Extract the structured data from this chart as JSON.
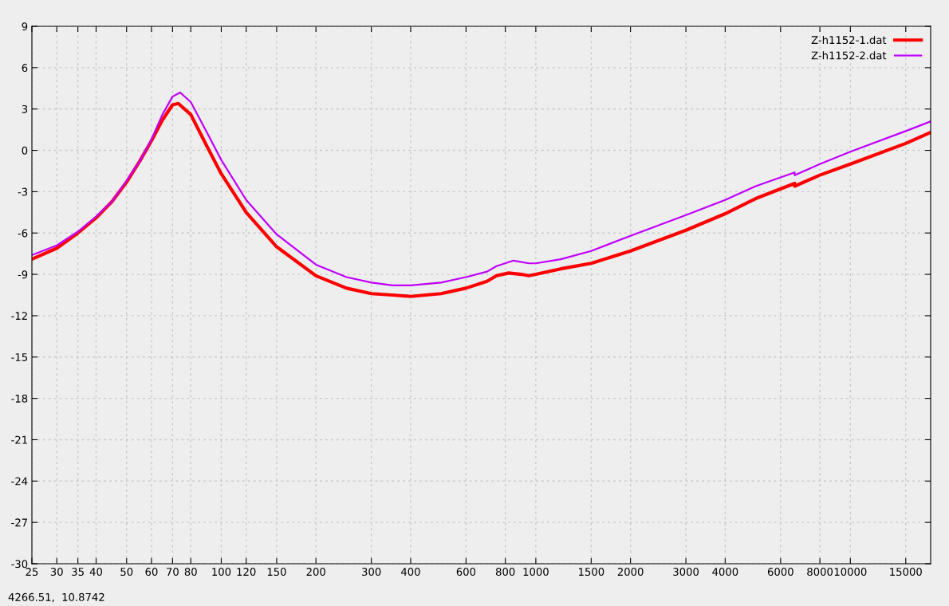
{
  "chart_data": {
    "type": "line",
    "log": "x",
    "grid": true,
    "legend": "top right",
    "line_style": "solid",
    "marker": "none",
    "xlim": [
      25,
      18000
    ],
    "xticks": [
      25,
      30,
      35,
      40,
      50,
      60,
      70,
      80,
      100,
      120,
      150,
      200,
      300,
      400,
      600,
      800,
      1000,
      1500,
      2000,
      3000,
      4000,
      6000,
      8000,
      10000,
      15000
    ],
    "ylim": [
      -30,
      9
    ],
    "yticks": [
      -30,
      -27,
      -24,
      -21,
      -18,
      -15,
      -12,
      -9,
      -6,
      -3,
      0,
      3,
      6,
      9
    ],
    "annotations": [
      "4266.51,  10.8742"
    ],
    "series": [
      {
        "name": "Z-h1152-1.dat",
        "color": "#ff0000",
        "x": [
          25,
          30,
          35,
          40,
          45,
          50,
          55,
          60,
          65,
          70,
          73,
          80,
          90,
          100,
          120,
          150,
          200,
          250,
          300,
          350,
          400,
          500,
          600,
          700,
          750,
          820,
          900,
          950,
          1000,
          1200,
          1500,
          2000,
          3000,
          4000,
          5000,
          6650,
          6650,
          8000,
          10000,
          15000,
          18000
        ],
        "values": [
          -7.9,
          -7.1,
          -6.0,
          -4.9,
          -3.7,
          -2.3,
          -0.8,
          0.7,
          2.2,
          3.3,
          3.4,
          2.6,
          0.3,
          -1.7,
          -4.5,
          -7.0,
          -9.1,
          -10.0,
          -10.4,
          -10.5,
          -10.6,
          -10.4,
          -10.0,
          -9.5,
          -9.1,
          -8.9,
          -9.0,
          -9.1,
          -9.0,
          -8.6,
          -8.2,
          -7.3,
          -5.8,
          -4.6,
          -3.5,
          -2.4,
          -2.6,
          -1.8,
          -1.0,
          0.5,
          1.3
        ]
      },
      {
        "name": "Z-h1152-2.dat",
        "color": "#c000ff",
        "x": [
          25,
          30,
          35,
          40,
          45,
          50,
          55,
          60,
          65,
          70,
          74,
          80,
          90,
          100,
          120,
          150,
          200,
          250,
          300,
          350,
          400,
          500,
          600,
          700,
          750,
          850,
          950,
          1000,
          1200,
          1500,
          2000,
          3000,
          4000,
          5000,
          6650,
          6650,
          8000,
          10000,
          15000,
          18000
        ],
        "values": [
          -7.6,
          -6.9,
          -5.9,
          -4.8,
          -3.7,
          -2.2,
          -0.8,
          0.8,
          2.6,
          3.9,
          4.2,
          3.5,
          1.3,
          -0.7,
          -3.6,
          -6.1,
          -8.3,
          -9.2,
          -9.6,
          -9.8,
          -9.8,
          -9.6,
          -9.2,
          -8.8,
          -8.4,
          -8.0,
          -8.2,
          -8.2,
          -7.9,
          -7.3,
          -6.2,
          -4.7,
          -3.6,
          -2.6,
          -1.6,
          -1.8,
          -1.0,
          -0.1,
          1.4,
          2.1
        ]
      }
    ]
  }
}
